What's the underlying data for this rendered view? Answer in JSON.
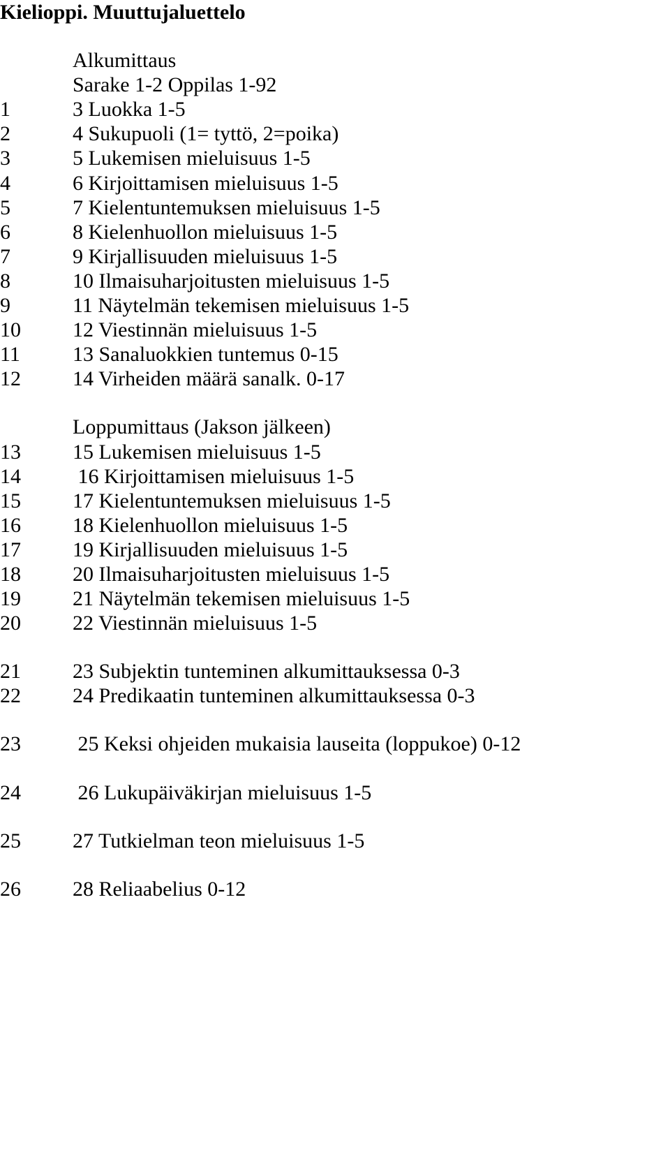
{
  "title": "Kielioppi. Muuttujaluettelo",
  "section_alkumittaus": "Alkumittaus",
  "section_sarake": "Sarake 1-2 Oppilas 1-92",
  "alku_rows": [
    {
      "n": "1",
      "t": "3 Luokka 1-5"
    },
    {
      "n": "2",
      "t": "4 Sukupuoli (1= tyttö, 2=poika)"
    },
    {
      "n": "3",
      "t": "5 Lukemisen mieluisuus 1-5"
    },
    {
      "n": "4",
      "t": "6 Kirjoittamisen mieluisuus 1-5"
    },
    {
      "n": "5",
      "t": "7 Kielentuntemuksen mieluisuus 1-5"
    },
    {
      "n": "6",
      "t": "8 Kielenhuollon mieluisuus 1-5"
    },
    {
      "n": "7",
      "t": "9 Kirjallisuuden mieluisuus 1-5"
    },
    {
      "n": "8",
      "t": "10 Ilmaisuharjoitusten mieluisuus 1-5"
    },
    {
      "n": "9",
      "t": "11 Näytelmän tekemisen mieluisuus 1-5"
    },
    {
      "n": "10",
      "t": "12 Viestinnän mieluisuus 1-5"
    },
    {
      "n": "11",
      "t": "13 Sanaluokkien tuntemus 0-15"
    },
    {
      "n": "12",
      "t": "14 Virheiden määrä sanalk. 0-17"
    }
  ],
  "section_loppumittaus": "Loppumittaus (Jakson jälkeen)",
  "loppu_rows": [
    {
      "n": "13",
      "t": "15 Lukemisen mieluisuus 1-5"
    },
    {
      "n": "14",
      "t": " 16 Kirjoittamisen mieluisuus 1-5"
    },
    {
      "n": "15",
      "t": "17 Kielentuntemuksen mieluisuus 1-5"
    },
    {
      "n": "16",
      "t": "18 Kielenhuollon mieluisuus 1-5"
    },
    {
      "n": "17",
      "t": "19 Kirjallisuuden mieluisuus 1-5"
    },
    {
      "n": "18",
      "t": "20 Ilmaisuharjoitusten mieluisuus 1-5"
    },
    {
      "n": "19",
      "t": "21 Näytelmän tekemisen mieluisuus 1-5"
    },
    {
      "n": "20",
      "t": "22 Viestinnän mieluisuus 1-5"
    }
  ],
  "block2": [
    {
      "n": "21",
      "t": "23 Subjektin tunteminen alkumittauksessa 0-3"
    },
    {
      "n": "22",
      "t": "24 Predikaatin tunteminen alkumittauksessa 0-3"
    }
  ],
  "block3": [
    {
      "n": "23",
      "t": " 25 Keksi ohjeiden mukaisia lauseita (loppukoe) 0-12"
    }
  ],
  "block4": [
    {
      "n": "24",
      "t": " 26 Lukupäiväkirjan mieluisuus 1-5"
    }
  ],
  "block5": [
    {
      "n": "25",
      "t": "27 Tutkielman teon mieluisuus 1-5"
    }
  ],
  "block6": [
    {
      "n": "26",
      "t": "28 Reliaabelius 0-12"
    }
  ]
}
